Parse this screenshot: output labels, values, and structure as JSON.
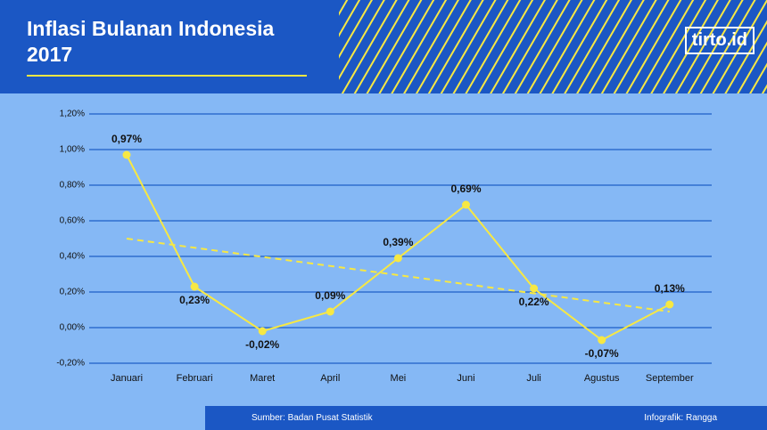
{
  "title": "Inflasi Bulanan Indonesia 2017",
  "logo": "tirto.id",
  "source": "Sumber: Badan Pusat Statistik",
  "credit": "Infografik: Rangga",
  "chart_data": {
    "type": "line",
    "categories": [
      "Januari",
      "Februari",
      "Maret",
      "April",
      "Mei",
      "Juni",
      "Juli",
      "Agustus",
      "September"
    ],
    "series": [
      {
        "color": "#f7e843",
        "values": [
          0.97,
          0.23,
          -0.02,
          0.09,
          0.39,
          0.69,
          0.22,
          -0.07,
          0.13
        ],
        "value_labels": [
          "0,97%",
          "0,23%",
          "-0,02%",
          "0,09%",
          "0,39%",
          "0,69%",
          "0,22%",
          "-0,07%",
          "0,13%"
        ]
      }
    ],
    "trendline": {
      "color": "#f7e843",
      "values": [
        0.5,
        0.09
      ]
    },
    "ylim": [
      -0.2,
      1.2
    ],
    "yticks": [
      {
        "value": -0.2,
        "label": "-0,20%"
      },
      {
        "value": 0,
        "label": "0,00%"
      },
      {
        "value": 0.2,
        "label": "0,20%"
      },
      {
        "value": 0.4,
        "label": "0,40%"
      },
      {
        "value": 0.6,
        "label": "0,60%"
      },
      {
        "value": 0.8,
        "label": "0,80%"
      },
      {
        "value": 1.0,
        "label": "1,00%"
      },
      {
        "value": 1.2,
        "label": "1,20%"
      }
    ],
    "grid": true
  }
}
